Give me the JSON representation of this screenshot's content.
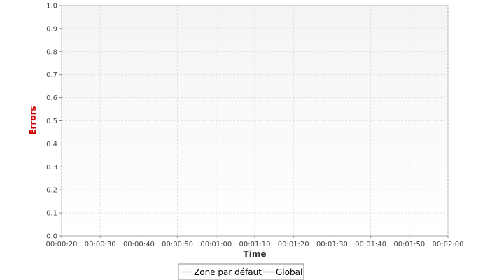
{
  "chart_data": {
    "type": "line",
    "title": "",
    "xlabel": "Time",
    "ylabel": "Errors",
    "x_ticks": [
      "00:00:20",
      "00:00:30",
      "00:00:40",
      "00:00:50",
      "00:01:00",
      "00:01:10",
      "00:01:20",
      "00:01:30",
      "00:01:40",
      "00:01:50",
      "00:02:00"
    ],
    "xlim": [
      "00:00:20",
      "00:02:00"
    ],
    "y_ticks": [
      "0.0",
      "0.1",
      "0.2",
      "0.3",
      "0.4",
      "0.5",
      "0.6",
      "0.7",
      "0.8",
      "0.9",
      "1.0"
    ],
    "ylim": [
      0,
      1.0
    ],
    "grid": true,
    "legend_position": "bottom-center",
    "series": [
      {
        "name": "Zone par défaut",
        "color": "#4a7ebb",
        "values": []
      },
      {
        "name": "Global",
        "color": "#000000",
        "values": []
      }
    ],
    "colors": {
      "ylabel": "#cc0000",
      "xlabel": "#333333",
      "plot_background_top": "#f4f4f4",
      "plot_background_bottom": "#ffffff",
      "grid": "#d9d9d9",
      "frame": "#aaaaaa"
    }
  }
}
